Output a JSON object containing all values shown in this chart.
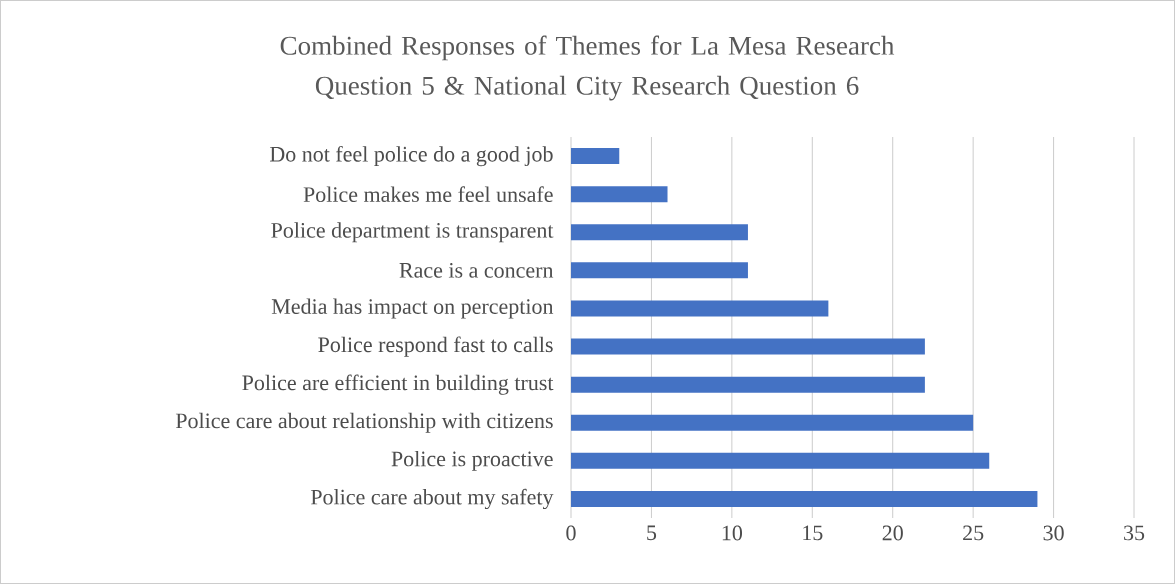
{
  "chart_data": {
    "type": "bar",
    "orientation": "horizontal",
    "title": "Combined Responses of Themes for La Mesa Research Question 5 & National City Research Question 6",
    "categories": [
      "Do not feel police do a good job",
      "Police makes me feel unsafe",
      "Police department is transparent",
      "Race is a concern",
      "Media has impact on perception",
      "Police respond fast to calls",
      "Police are efficient in building trust",
      "Police care about relationship with citizens",
      "Police is proactive",
      "Police care about my safety"
    ],
    "values": [
      3,
      6,
      11,
      11,
      16,
      22,
      22,
      25,
      26,
      29
    ],
    "color": "#4472c4",
    "xlim": [
      0,
      35
    ],
    "xticks": [
      0,
      5,
      10,
      15,
      20,
      25,
      30,
      35
    ],
    "grid": "x"
  }
}
